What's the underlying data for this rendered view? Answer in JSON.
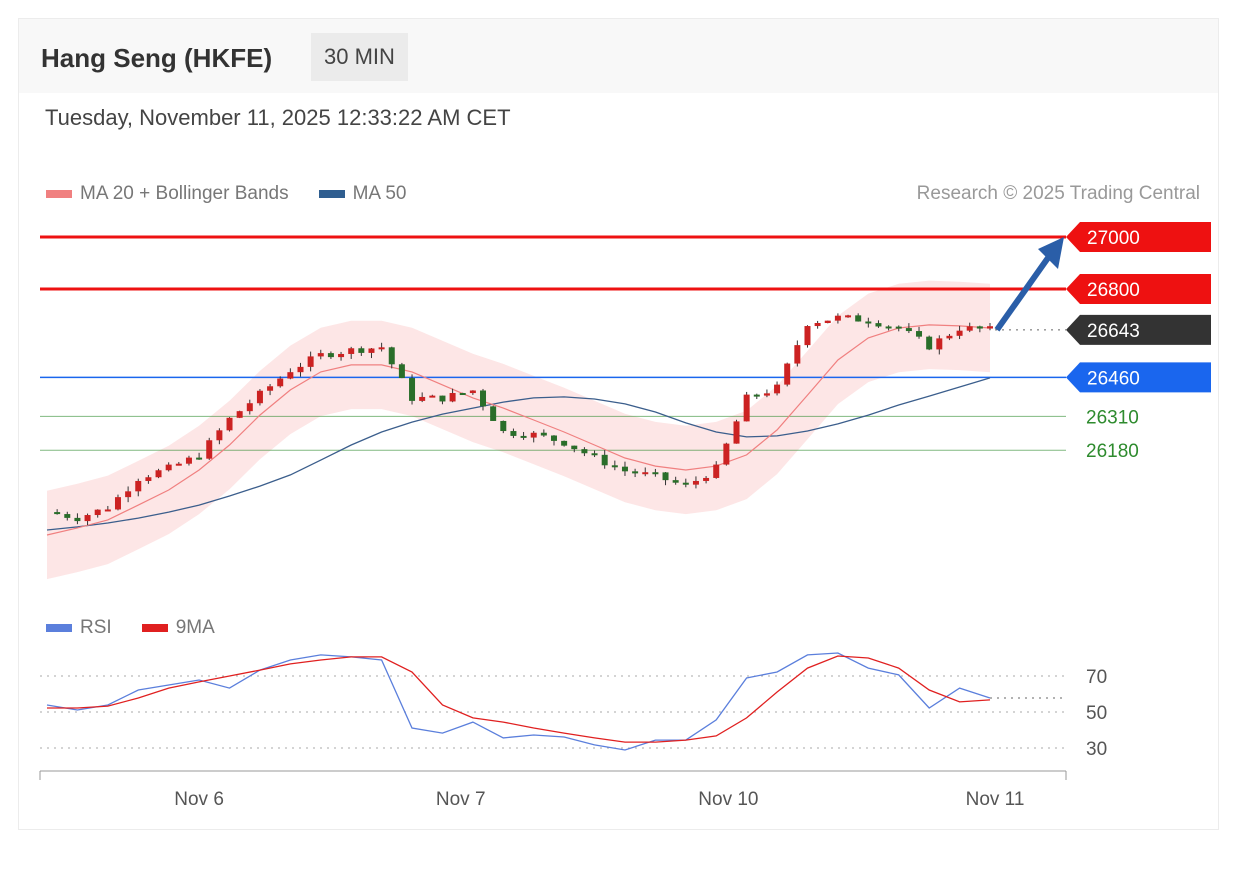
{
  "header": {
    "title": "Hang Seng (HKFE)",
    "timeframe": "30 MIN",
    "datetime": "Tuesday, November 11, 2025 12:33:22 AM CET"
  },
  "legend": {
    "ma20": "MA 20 + Bollinger Bands",
    "ma50": "MA 50",
    "rsi": "RSI",
    "ma9": "9MA"
  },
  "credit": "Research © 2025 Trading Central",
  "colors": {
    "resistance": "#ee1111",
    "current": "#333333",
    "pivot": "#1a66ee",
    "support": "#2e8b2e",
    "ma20": "#f08080",
    "ma50": "#3b5e8c",
    "rsi": "#5b7fdc",
    "ma9": "#e02020",
    "up": "#cc2222",
    "down": "#2a6e2a"
  },
  "chart_data": [
    {
      "type": "candlestick",
      "title": "",
      "ylim": [
        25800,
        27050
      ],
      "x_ticks": [
        {
          "index": 5,
          "label": "Nov 6"
        },
        {
          "index": 13.6,
          "label": "Nov 7"
        },
        {
          "index": 22.4,
          "label": "Nov 10"
        },
        {
          "index": 31,
          "label": "Nov 11"
        }
      ],
      "close": [
        25942,
        25920,
        25960,
        26073,
        26110,
        26160,
        26300,
        26395,
        26488,
        26546,
        26565,
        26577,
        26380,
        26380,
        26410,
        26250,
        26240,
        26210,
        26150,
        26100,
        26080,
        26040,
        26110,
        26380,
        26420,
        26670,
        26690,
        26680,
        26650,
        26580,
        26650,
        26643
      ],
      "ma20": [
        25854,
        25881,
        25912,
        25969,
        26027,
        26104,
        26200,
        26315,
        26412,
        26481,
        26508,
        26508,
        26481,
        26431,
        26381,
        26342,
        26296,
        26250,
        26200,
        26150,
        26119,
        26104,
        26119,
        26162,
        26258,
        26392,
        26527,
        26612,
        26650,
        26662,
        26658,
        26650
      ],
      "ma50": [
        25873,
        25885,
        25900,
        25919,
        25942,
        25969,
        26004,
        26042,
        26085,
        26142,
        26200,
        26250,
        26288,
        26319,
        26342,
        26365,
        26381,
        26385,
        26377,
        26358,
        26327,
        26285,
        26250,
        26231,
        26235,
        26254,
        26281,
        26315,
        26354,
        26388,
        26423,
        26458
      ],
      "levels": [
        {
          "value": 27000,
          "label": "27000",
          "kind": "resistance"
        },
        {
          "value": 26800,
          "label": "26800",
          "kind": "resistance"
        },
        {
          "value": 26643,
          "label": "26643",
          "kind": "current"
        },
        {
          "value": 26460,
          "label": "26460",
          "kind": "pivot"
        },
        {
          "value": 26310,
          "label": "26310",
          "kind": "support"
        },
        {
          "value": 26180,
          "label": "26180",
          "kind": "support"
        }
      ],
      "projection": {
        "from": 26643,
        "to": 27000,
        "direction": "up"
      }
    },
    {
      "type": "line",
      "title": "RSI",
      "ylim": [
        20,
        90
      ],
      "y_ticks": [
        "70",
        "50",
        "30"
      ],
      "y_tick_values": [
        70,
        50,
        30
      ],
      "series": [
        {
          "name": "RSI",
          "values": [
            53.9,
            51.1,
            53.9,
            62.2,
            65,
            67.8,
            63.3,
            73.3,
            78.9,
            81.7,
            80.6,
            78.9,
            41.1,
            38.3,
            44.4,
            35.6,
            37.2,
            36.1,
            31.7,
            28.9,
            34.4,
            34.4,
            45.6,
            68.9,
            72.2,
            81.7,
            82.8,
            74.4,
            70.6,
            52.2,
            63.3,
            57.8
          ]
        },
        {
          "name": "9MA",
          "values": [
            52.2,
            52.2,
            53.3,
            57.8,
            63.3,
            66.7,
            70,
            73.3,
            76.7,
            78.9,
            80.6,
            80.6,
            72.2,
            53.9,
            46.7,
            44.4,
            41.1,
            38.3,
            35.6,
            33.3,
            33.3,
            34.4,
            36.7,
            46.7,
            61.1,
            74.4,
            81.1,
            80,
            74.4,
            62.2,
            55.6,
            56.7
          ]
        }
      ]
    }
  ]
}
